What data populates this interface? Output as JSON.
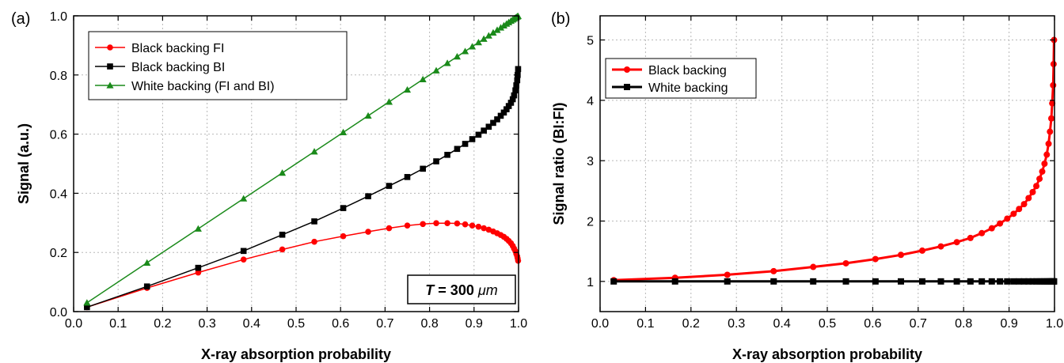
{
  "colors": {
    "red": "#ff0000",
    "black": "#000000",
    "green": "#1a8a1a"
  },
  "chart_data": [
    {
      "panel_label": "(a)",
      "type": "line",
      "xlabel": "X-ray absorption probability",
      "ylabel": "Signal (a.u.)",
      "xlim": [
        0.0,
        1.0
      ],
      "ylim": [
        0.0,
        1.0
      ],
      "xticks": [
        "0.0",
        "0.1",
        "0.2",
        "0.3",
        "0.4",
        "0.5",
        "0.6",
        "0.7",
        "0.8",
        "0.9",
        "1.0"
      ],
      "yticks": [
        "0.0",
        "0.2",
        "0.4",
        "0.6",
        "0.8",
        "1.0"
      ],
      "grid": true,
      "legend_position": "top-left",
      "annotation": {
        "var": "T",
        "text": " = 300 ",
        "unit": "μm"
      },
      "series": [
        {
          "name": "Black backing FI",
          "color": "#ff0000",
          "marker": "circle",
          "x": [
            0.03,
            0.165,
            0.28,
            0.382,
            0.469,
            0.541,
            0.606,
            0.662,
            0.709,
            0.75,
            0.785,
            0.815,
            0.84,
            0.862,
            0.88,
            0.896,
            0.91,
            0.922,
            0.933,
            0.943,
            0.952,
            0.96,
            0.967,
            0.973,
            0.978,
            0.983,
            0.987,
            0.99,
            0.993,
            0.995,
            0.997,
            0.998,
            0.999
          ],
          "y": [
            0.015,
            0.08,
            0.132,
            0.176,
            0.21,
            0.236,
            0.255,
            0.27,
            0.282,
            0.291,
            0.296,
            0.299,
            0.299,
            0.298,
            0.295,
            0.291,
            0.287,
            0.282,
            0.277,
            0.271,
            0.265,
            0.259,
            0.253,
            0.246,
            0.239,
            0.231,
            0.222,
            0.213,
            0.204,
            0.195,
            0.187,
            0.18,
            0.172
          ]
        },
        {
          "name": "Black backing BI",
          "color": "#000000",
          "marker": "square",
          "x": [
            0.03,
            0.165,
            0.28,
            0.382,
            0.469,
            0.541,
            0.606,
            0.662,
            0.709,
            0.75,
            0.785,
            0.815,
            0.84,
            0.862,
            0.88,
            0.896,
            0.91,
            0.922,
            0.933,
            0.943,
            0.952,
            0.96,
            0.967,
            0.973,
            0.978,
            0.983,
            0.987,
            0.99,
            0.993,
            0.995,
            0.997,
            0.998,
            0.999
          ],
          "y": [
            0.015,
            0.085,
            0.148,
            0.205,
            0.26,
            0.305,
            0.35,
            0.39,
            0.425,
            0.455,
            0.483,
            0.508,
            0.53,
            0.55,
            0.567,
            0.583,
            0.598,
            0.612,
            0.625,
            0.638,
            0.65,
            0.662,
            0.673,
            0.684,
            0.695,
            0.706,
            0.718,
            0.731,
            0.748,
            0.765,
            0.782,
            0.8,
            0.82
          ]
        },
        {
          "name": "White backing (FI and BI)",
          "color": "#1a8a1a",
          "marker": "triangle",
          "x": [
            0.03,
            0.165,
            0.28,
            0.382,
            0.469,
            0.541,
            0.606,
            0.662,
            0.709,
            0.75,
            0.785,
            0.815,
            0.84,
            0.862,
            0.88,
            0.896,
            0.91,
            0.922,
            0.933,
            0.943,
            0.952,
            0.96,
            0.967,
            0.973,
            0.978,
            0.983,
            0.987,
            0.99,
            0.993,
            0.995,
            0.997,
            0.998,
            0.999
          ],
          "y": [
            0.03,
            0.165,
            0.28,
            0.382,
            0.469,
            0.541,
            0.606,
            0.662,
            0.709,
            0.75,
            0.785,
            0.815,
            0.84,
            0.862,
            0.88,
            0.896,
            0.91,
            0.922,
            0.933,
            0.943,
            0.952,
            0.96,
            0.967,
            0.973,
            0.978,
            0.983,
            0.987,
            0.99,
            0.993,
            0.995,
            0.997,
            0.998,
            0.999
          ]
        }
      ]
    },
    {
      "panel_label": "(b)",
      "type": "line",
      "xlabel": "X-ray absorption probability",
      "ylabel": "Signal ratio (BI:FI)",
      "xlim": [
        0.0,
        1.0
      ],
      "ylim": [
        0.5,
        5.4
      ],
      "xticks": [
        "0.0",
        "0.1",
        "0.2",
        "0.3",
        "0.4",
        "0.5",
        "0.6",
        "0.7",
        "0.8",
        "0.9",
        "1.0"
      ],
      "yticks": [
        "1",
        "2",
        "3",
        "4",
        "5"
      ],
      "grid": true,
      "legend_position": "top-left",
      "series": [
        {
          "name": "Black backing",
          "color": "#ff0000",
          "marker": "circle",
          "x": [
            0.03,
            0.165,
            0.28,
            0.382,
            0.469,
            0.541,
            0.606,
            0.662,
            0.709,
            0.75,
            0.785,
            0.815,
            0.84,
            0.862,
            0.88,
            0.896,
            0.91,
            0.922,
            0.933,
            0.943,
            0.952,
            0.96,
            0.967,
            0.973,
            0.978,
            0.983,
            0.987,
            0.99,
            0.993,
            0.995,
            0.997,
            0.998,
            0.999
          ],
          "y": [
            1.02,
            1.06,
            1.11,
            1.17,
            1.24,
            1.3,
            1.37,
            1.44,
            1.51,
            1.58,
            1.65,
            1.72,
            1.8,
            1.88,
            1.96,
            2.04,
            2.12,
            2.2,
            2.28,
            2.38,
            2.48,
            2.58,
            2.7,
            2.82,
            2.95,
            3.1,
            3.28,
            3.48,
            3.7,
            3.95,
            4.25,
            4.6,
            5.0
          ]
        },
        {
          "name": "White backing",
          "color": "#000000",
          "marker": "square",
          "x": [
            0.03,
            0.165,
            0.28,
            0.382,
            0.469,
            0.541,
            0.606,
            0.662,
            0.709,
            0.75,
            0.785,
            0.815,
            0.84,
            0.862,
            0.88,
            0.896,
            0.91,
            0.922,
            0.933,
            0.943,
            0.952,
            0.96,
            0.967,
            0.973,
            0.978,
            0.983,
            0.987,
            0.99,
            0.993,
            0.995,
            0.997,
            0.998,
            0.999
          ],
          "y": [
            1,
            1,
            1,
            1,
            1,
            1,
            1,
            1,
            1,
            1,
            1,
            1,
            1,
            1,
            1,
            1,
            1,
            1,
            1,
            1,
            1,
            1,
            1,
            1,
            1,
            1,
            1,
            1,
            1,
            1,
            1,
            1,
            1
          ]
        }
      ]
    }
  ]
}
